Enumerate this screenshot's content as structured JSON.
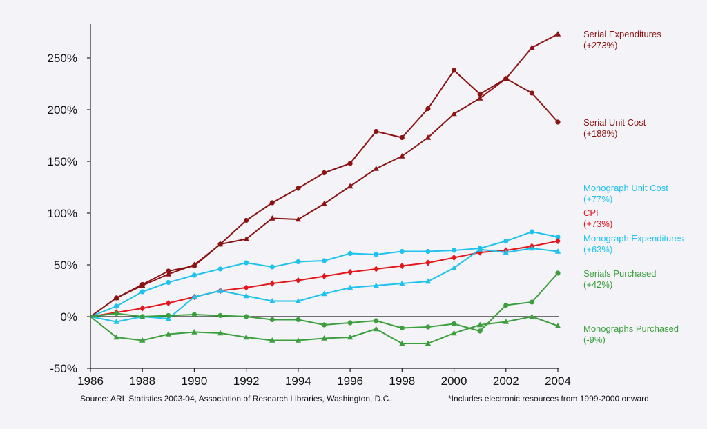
{
  "chart_data": {
    "type": "line",
    "x": [
      1986,
      1987,
      1988,
      1989,
      1990,
      1991,
      1992,
      1993,
      1994,
      1995,
      1996,
      1997,
      1998,
      1999,
      2000,
      2001,
      2002,
      2003,
      2004
    ],
    "x_ticks": [
      "1986",
      "1988",
      "1990",
      "1992",
      "1994",
      "1996",
      "1998",
      "2000",
      "2002",
      "2004"
    ],
    "y_ticks": [
      "-50%",
      "0%",
      "50%",
      "100%",
      "150%",
      "200%",
      "250%"
    ],
    "xlim": [
      1986,
      2004
    ],
    "ylim": [
      -50,
      282
    ],
    "grid": false,
    "legend": "right",
    "series": [
      {
        "name": "Serial Expenditures",
        "change": "(+273%)",
        "color": "#8b1313",
        "marker": "triangle",
        "values": [
          0,
          18,
          30,
          41,
          50,
          70,
          75,
          95,
          94,
          109,
          126,
          143,
          155,
          173,
          196,
          211,
          230,
          260,
          273
        ]
      },
      {
        "name": "Serial Unit Cost",
        "change": "(+188%)",
        "color": "#8b1313",
        "marker": "circle",
        "values": [
          0,
          18,
          31,
          44,
          49,
          70,
          93,
          110,
          124,
          139,
          148,
          179,
          173,
          201,
          238,
          215,
          230,
          216,
          188
        ]
      },
      {
        "name": "Monograph Unit Cost",
        "change": "(+77%)",
        "color": "#1ec2ec",
        "marker": "circle",
        "values": [
          0,
          10,
          24,
          33,
          40,
          46,
          52,
          48,
          53,
          54,
          61,
          60,
          63,
          63,
          64,
          66,
          73,
          82,
          77
        ]
      },
      {
        "name": "CPI",
        "change": "(+73%)",
        "color": "#e3161c",
        "marker": "diamond",
        "values": [
          0,
          4,
          8,
          13,
          19,
          25,
          28,
          32,
          35,
          39,
          43,
          46,
          49,
          52,
          57,
          62,
          64,
          68,
          73
        ]
      },
      {
        "name": "Monograph Expenditures",
        "change": "(+63%)",
        "color": "#1ec2ec",
        "marker": "triangle",
        "values": [
          0,
          -5,
          0,
          -2,
          19,
          25,
          20,
          15,
          15,
          22,
          28,
          30,
          32,
          34,
          47,
          65,
          62,
          66,
          63
        ]
      },
      {
        "name": "Serials Purchased",
        "change": "(+42%)",
        "color": "#3c9e3c",
        "marker": "circle",
        "values": [
          0,
          3,
          0,
          1,
          2,
          1,
          0,
          -3,
          -3,
          -8,
          -6,
          -4,
          -11,
          -10,
          -7,
          -14,
          11,
          14,
          42
        ]
      },
      {
        "name": "Monographs Purchased",
        "change": "(-9%)",
        "color": "#3c9e3c",
        "marker": "triangle",
        "values": [
          0,
          -20,
          -23,
          -17,
          -15,
          -16,
          -20,
          -23,
          -23,
          -21,
          -20,
          -12,
          -26,
          -26,
          -16,
          -8,
          -5,
          0,
          -9
        ]
      }
    ],
    "source": "Source: ARL Statistics 2003-04, Association of Research Libraries, Washington, D.C.",
    "note": "*Includes electronic resources from 1999-2000 onward."
  }
}
